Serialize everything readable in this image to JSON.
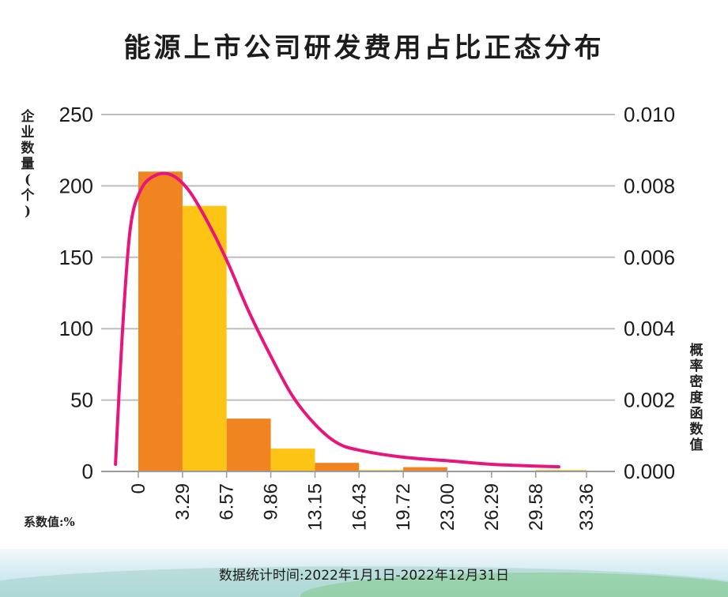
{
  "title": "能源上市公司研发费用占比正态分布",
  "left_axis_label": "企业数量(个)",
  "right_axis_label": "概率密度函数值",
  "x_unit_note": "系数值:%",
  "footer": {
    "label": "数据统计时间:",
    "range": "2022年1月1日-2022年12月31日"
  },
  "colors": {
    "bar_orange": "#f08420",
    "bar_yellow": "#fcc414",
    "curve": "#e8157a",
    "grid": "#bdbdbd"
  },
  "chart_data": {
    "type": "bar",
    "bin_edges": [
      0,
      3.29,
      6.57,
      9.86,
      13.15,
      16.43,
      19.72,
      23.0,
      26.29,
      29.58,
      33.36
    ],
    "x_tick_labels": [
      "0",
      "3.29",
      "6.57",
      "9.86",
      "13.15",
      "16.43",
      "19.72",
      "23.00",
      "26.29",
      "29.58",
      "33.36"
    ],
    "counts": [
      210,
      186,
      37,
      16,
      6,
      1,
      3,
      0,
      0,
      1
    ],
    "bar_colors": [
      "orange",
      "yellow",
      "orange",
      "yellow",
      "orange",
      "yellow",
      "orange",
      "yellow",
      "orange",
      "yellow"
    ],
    "y_left": {
      "ticks": [
        0,
        50,
        100,
        150,
        200,
        250
      ],
      "tick_labels": [
        "0",
        "50",
        "100",
        "150",
        "200",
        "250"
      ],
      "range": [
        0,
        250
      ]
    },
    "y_right": {
      "ticks": [
        0,
        0.002,
        0.004,
        0.006,
        0.008,
        0.01
      ],
      "tick_labels": [
        "0.000",
        "0.002",
        "0.004",
        "0.006",
        "0.008",
        "0.010"
      ],
      "range": [
        0,
        0.01
      ]
    },
    "density_curve": [
      [
        -1.7,
        0.0002
      ],
      [
        -1.2,
        0.0038
      ],
      [
        -0.6,
        0.0068
      ],
      [
        0.2,
        0.0079
      ],
      [
        1.3,
        0.0083
      ],
      [
        2.5,
        0.0083
      ],
      [
        3.7,
        0.0079
      ],
      [
        5.0,
        0.0071
      ],
      [
        6.6,
        0.0059
      ],
      [
        8.2,
        0.0045
      ],
      [
        9.9,
        0.0032
      ],
      [
        11.5,
        0.0021
      ],
      [
        13.2,
        0.0013
      ],
      [
        14.8,
        0.0008
      ],
      [
        16.4,
        0.0006
      ],
      [
        19.7,
        0.0004
      ],
      [
        23.0,
        0.0003
      ],
      [
        26.3,
        0.0002
      ],
      [
        29.6,
        0.00015
      ],
      [
        31.3,
        0.00013
      ]
    ],
    "grid": true
  }
}
